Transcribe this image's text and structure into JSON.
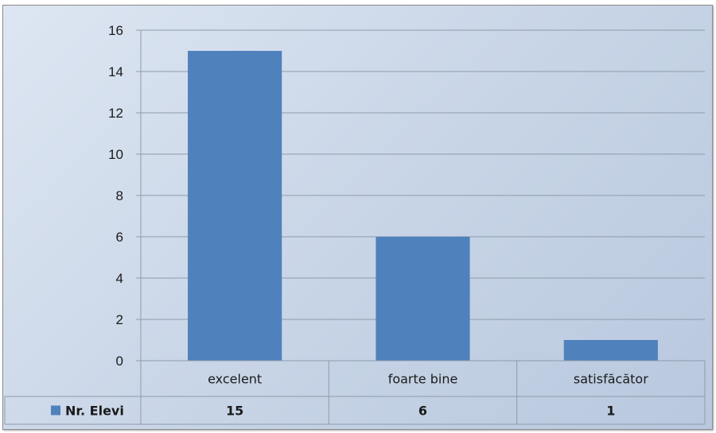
{
  "chart_data": {
    "type": "bar",
    "categories": [
      "excelent",
      "foarte bine",
      "satisfăcător"
    ],
    "series": [
      {
        "name": "Nr. Elevi",
        "values": [
          15,
          6,
          1
        ],
        "color": "#4f81bd"
      }
    ],
    "ylim": [
      0,
      16
    ],
    "yticks": [
      0,
      2,
      4,
      6,
      8,
      10,
      12,
      14,
      16
    ],
    "grid": true,
    "legend": "data-table-left",
    "colors": {
      "bar": "#4f81bd",
      "grid": "#8e9bab",
      "table_border": "#8e9bab"
    }
  }
}
